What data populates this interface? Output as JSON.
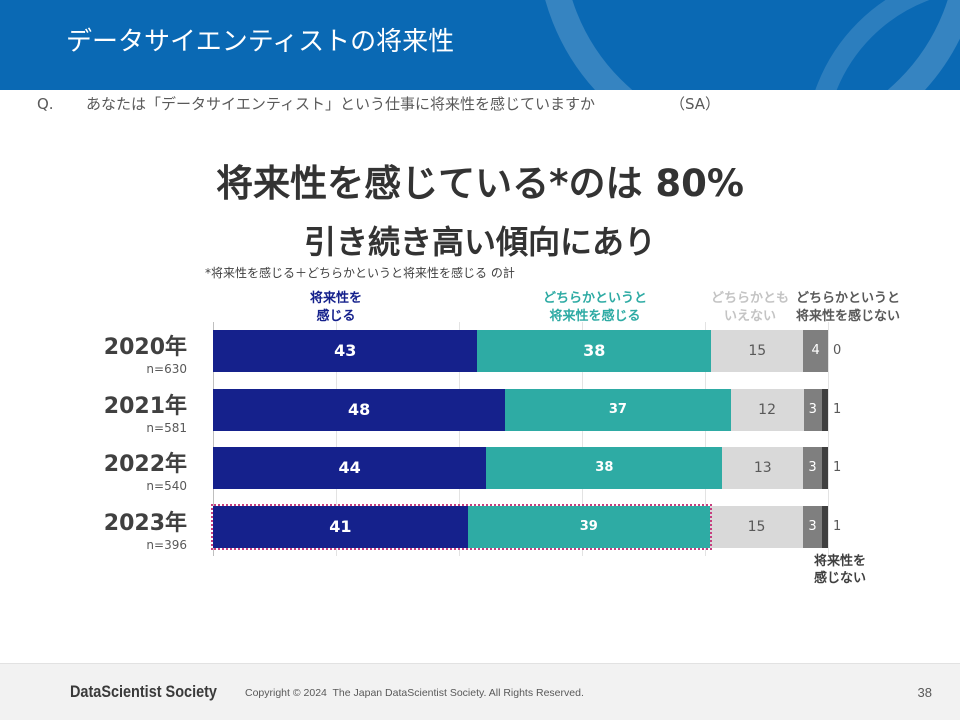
{
  "header": {
    "title": "データサイエンティストの将来性"
  },
  "question": {
    "label": "Q.",
    "text": "あなたは「データサイエンティスト」という仕事に将来性を感じていますか",
    "type": "（SA）"
  },
  "chart_data": {
    "type": "bar",
    "stacked": true,
    "horizontal": true,
    "title": "将来性を感じている*のは 80%",
    "subtitle": "引き続き高い傾向にあり",
    "note": "*将来性を感じる＋どちらかというと将来性を感じる の計",
    "categories": [
      "2020年",
      "2021年",
      "2022年",
      "2023年"
    ],
    "n_labels": [
      "n=630",
      "n=581",
      "n=540",
      "n=396"
    ],
    "xlim": [
      0,
      100
    ],
    "series": [
      {
        "name": "将来性を\n感じる",
        "color": "#15218c",
        "values": [
          43,
          48,
          44,
          41
        ]
      },
      {
        "name": "どちらかというと\n将来性を感じる",
        "color": "#2eaba4",
        "values": [
          38,
          37,
          38,
          39
        ]
      },
      {
        "name": "どちらかとも\nいえない",
        "color": "#d9d9d9",
        "values": [
          15,
          12,
          13,
          15
        ]
      },
      {
        "name": "どちらかというと\n将来性を感じない",
        "color": "#7f7f7f",
        "values": [
          4,
          3,
          3,
          3
        ]
      },
      {
        "name": "将来性を\n感じない",
        "color": "#3f3f3f",
        "values": [
          0,
          1,
          1,
          1
        ]
      }
    ]
  },
  "footer": {
    "logo": "DataScientist Society",
    "copyright": "Copyright © 2024  The Japan DataScientist Society. All Rights Reserved.",
    "page": "38"
  }
}
